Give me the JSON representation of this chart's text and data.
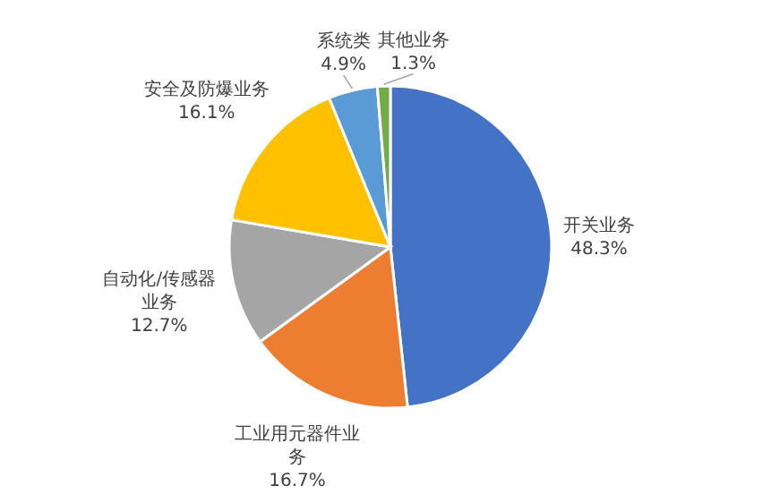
{
  "chart_data": {
    "type": "pie",
    "categories": [
      "开关业务",
      "工业用元器件业务",
      "自动化/传感器业务",
      "安全及防爆业务",
      "系统类",
      "其他业务"
    ],
    "value_labels": [
      "48.3%",
      "16.7%",
      "12.7%",
      "16.1%",
      "4.9%",
      "1.3%"
    ],
    "values": [
      48.3,
      16.7,
      12.7,
      16.1,
      4.9,
      1.3
    ],
    "colors": [
      "#4472c4",
      "#ed7d31",
      "#a5a5a5",
      "#ffc000",
      "#5b9bd5",
      "#70ad47"
    ],
    "data_labels": true
  }
}
